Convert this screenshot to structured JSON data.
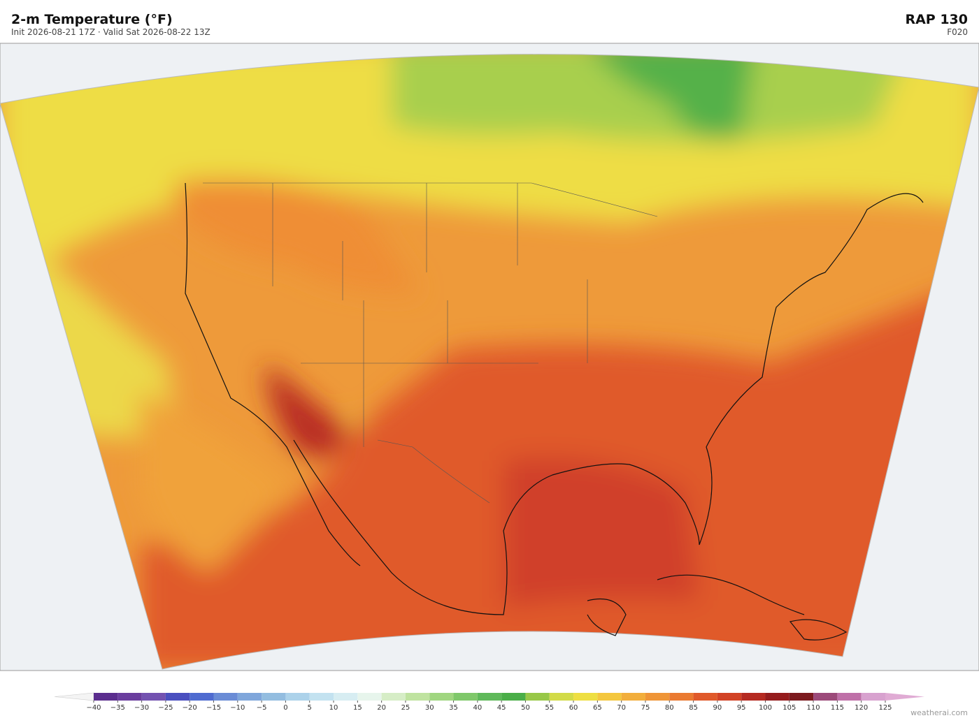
{
  "header": {
    "title": "2-m Temperature  (°F)",
    "subtitle": "Init 2026-08-21 17Z  ·  Valid Sat 2026-08-22 13Z",
    "model": "RAP  130",
    "forecast_hour": "F020"
  },
  "colorbar": {
    "ticks": [
      {
        "value": -40,
        "label": "−40"
      },
      {
        "value": -35,
        "label": "−35"
      },
      {
        "value": -30,
        "label": "−30"
      },
      {
        "value": -25,
        "label": "−25"
      },
      {
        "value": -20,
        "label": "−20"
      },
      {
        "value": -15,
        "label": "−15"
      },
      {
        "value": -10,
        "label": "−10"
      },
      {
        "value": -5,
        "label": "−5"
      },
      0,
      5,
      10,
      15,
      20,
      25,
      30,
      35,
      40,
      45,
      50,
      55,
      60,
      65,
      70,
      75,
      80,
      85,
      90,
      95,
      100,
      105,
      110,
      115,
      120,
      125
    ],
    "colors": [
      "#5b2d8e",
      "#6a3d9e",
      "#7352b0",
      "#4a4fbf",
      "#4f6bd0",
      "#6a8cd6",
      "#7fa6db",
      "#93bde0",
      "#acd2ea",
      "#c3e2f0",
      "#d7edf2",
      "#e7f5ec",
      "#d6edc6",
      "#bfe3a0",
      "#a0d680",
      "#7fc86a",
      "#5fb95a",
      "#4aae48",
      "#98c848",
      "#d2db48",
      "#eedf42",
      "#f4c73e",
      "#f2ae3c",
      "#ef9537",
      "#ea7a31",
      "#e0592a",
      "#d24225",
      "#b52a21",
      "#951c1d",
      "#7c1a1f",
      "#9c4a7a",
      "#bf70a8",
      "#d8a2cf"
    ],
    "under_color": "#f4f4f4",
    "over_color": "#e0abd4"
  },
  "footer": {
    "credit": "weatherai.com"
  }
}
